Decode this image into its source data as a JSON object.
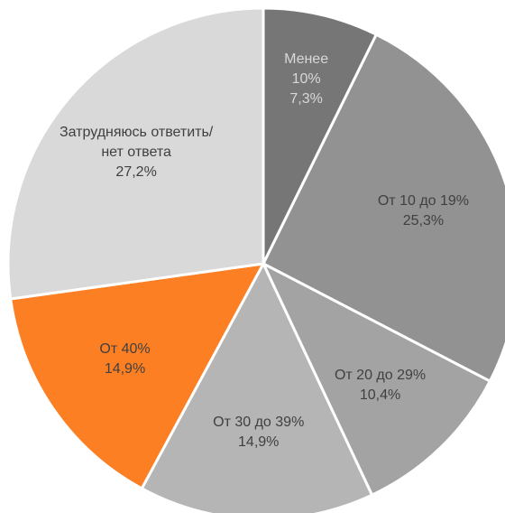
{
  "chart_data": {
    "type": "pie",
    "categories": [
      "Менее 10%",
      "От 10 до 19%",
      "От 20 до 29%",
      "От 30 до 39%",
      "От 40%",
      "Затрудняюсь ответить/нет ответа"
    ],
    "values": [
      7.3,
      25.3,
      10.4,
      14.9,
      14.9,
      27.2
    ],
    "value_labels": [
      "7,3%",
      "25,3%",
      "10,4%",
      "14,9%",
      "14,9%",
      "27,2%"
    ],
    "colors": [
      "#767676",
      "#929292",
      "#a3a3a3",
      "#b5b5b5",
      "#fd7f23",
      "#d9d9d9"
    ]
  }
}
